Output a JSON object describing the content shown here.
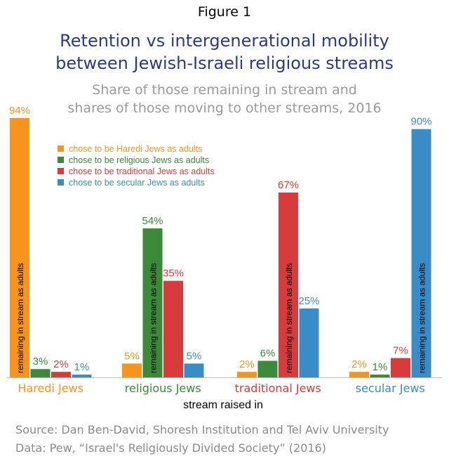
{
  "figure_label": "Figure 1",
  "title_line1": "Retention vs intergenerational mobility",
  "title_line2": "between Jewish-Israeli religious streams",
  "subtitle_line1": "Share of those remaining in stream and",
  "subtitle_line2": "shares of those moving to other streams, 2016",
  "source_line1": "Source: Dan Ben-David, Shoresh Institution and Tel Aviv University",
  "source_line2": "Data: Pew, “Israel's Religiously Divided Society” (2016)",
  "bar_annotation": "remaining in stream as adults",
  "colors": {
    "haredi": "#f7941d",
    "religious": "#3a8a3a",
    "traditional": "#d83b3b",
    "secular": "#3a8cc6"
  },
  "chart_data": {
    "type": "bar",
    "title": "Retention vs intergenerational mobility between Jewish-Israeli religious streams",
    "subtitle": "Share of those remaining in stream and shares of those moving to other streams, 2016",
    "xlabel": "stream raised in",
    "ylabel": "",
    "ylim": [
      0,
      100
    ],
    "grid": false,
    "legend_position": "top-left",
    "categories": [
      "Haredi Jews",
      "religious Jews",
      "traditional Jews",
      "secular Jews"
    ],
    "series": [
      {
        "name": "chose to be Haredi Jews as adults",
        "values": [
          94,
          5,
          2,
          2
        ],
        "labels": [
          "94%",
          "5%",
          "2%",
          "2%"
        ]
      },
      {
        "name": "chose to be religious Jews as adults",
        "values": [
          3,
          54,
          6,
          1
        ],
        "labels": [
          "3%",
          "54%",
          "6%",
          "1%"
        ]
      },
      {
        "name": "chose to be traditional Jews as adults",
        "values": [
          2,
          35,
          67,
          7
        ],
        "labels": [
          "2%",
          "35%",
          "67%",
          "7%"
        ]
      },
      {
        "name": "chose to be secular Jews as adults",
        "values": [
          1,
          5,
          25,
          90
        ],
        "labels": [
          "1%",
          "5%",
          "25%",
          "90%"
        ]
      }
    ]
  }
}
